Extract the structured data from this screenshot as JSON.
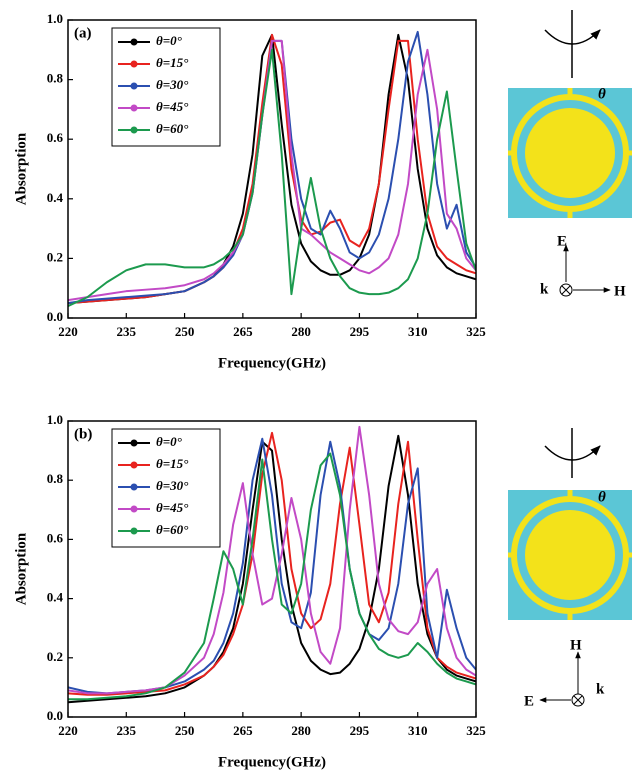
{
  "chart_data": [
    {
      "type": "line",
      "title": "(a)",
      "xlabel": "Frequency(GHz)",
      "ylabel": "Absorption",
      "legend": "upper left",
      "xlim": [
        220,
        325
      ],
      "ylim": [
        0,
        1
      ],
      "xticks": [
        220,
        235,
        250,
        265,
        280,
        295,
        310,
        325
      ],
      "yticks": [
        {
          "value": 0,
          "label": "0.0"
        },
        0.2,
        0.4,
        0.6,
        0.8,
        {
          "value": 1,
          "label": "1.0"
        }
      ],
      "annotations": [
        "θ",
        "E",
        "k",
        "H"
      ],
      "x": [
        220,
        225,
        230,
        235,
        240,
        245,
        250,
        255,
        257.5,
        260,
        262.5,
        265,
        267.5,
        270,
        272.5,
        275,
        277.5,
        280,
        282.5,
        285,
        287.5,
        290,
        292.5,
        295,
        297.5,
        300,
        302.5,
        305,
        307.5,
        310,
        312.5,
        315,
        317.5,
        320,
        322.5,
        325
      ],
      "series": [
        {
          "name": "θ=0°",
          "color": "#000000",
          "values": [
            0.05,
            0.055,
            0.06,
            0.065,
            0.07,
            0.08,
            0.09,
            0.12,
            0.14,
            0.18,
            0.24,
            0.35,
            0.55,
            0.88,
            0.95,
            0.65,
            0.38,
            0.25,
            0.19,
            0.16,
            0.145,
            0.145,
            0.16,
            0.2,
            0.28,
            0.45,
            0.75,
            0.95,
            0.8,
            0.5,
            0.3,
            0.21,
            0.17,
            0.15,
            0.14,
            0.13
          ]
        },
        {
          "name": "θ=15°",
          "color": "#e8231f",
          "values": [
            0.05,
            0.055,
            0.06,
            0.065,
            0.07,
            0.08,
            0.09,
            0.12,
            0.14,
            0.17,
            0.22,
            0.3,
            0.45,
            0.72,
            0.95,
            0.85,
            0.5,
            0.33,
            0.28,
            0.29,
            0.32,
            0.33,
            0.26,
            0.24,
            0.3,
            0.45,
            0.7,
            0.93,
            0.93,
            0.6,
            0.35,
            0.24,
            0.2,
            0.18,
            0.16,
            0.15
          ]
        },
        {
          "name": "θ=30°",
          "color": "#2b4fb0",
          "values": [
            0.05,
            0.06,
            0.065,
            0.07,
            0.075,
            0.08,
            0.09,
            0.12,
            0.14,
            0.17,
            0.21,
            0.28,
            0.42,
            0.68,
            0.93,
            0.93,
            0.6,
            0.4,
            0.3,
            0.28,
            0.36,
            0.3,
            0.22,
            0.2,
            0.22,
            0.28,
            0.4,
            0.6,
            0.86,
            0.96,
            0.75,
            0.45,
            0.3,
            0.38,
            0.22,
            0.17
          ]
        },
        {
          "name": "θ=45°",
          "color": "#c24ac6",
          "values": [
            0.06,
            0.07,
            0.08,
            0.09,
            0.095,
            0.1,
            0.11,
            0.13,
            0.15,
            0.18,
            0.22,
            0.28,
            0.42,
            0.68,
            0.93,
            0.93,
            0.55,
            0.3,
            0.28,
            0.25,
            0.22,
            0.2,
            0.18,
            0.16,
            0.15,
            0.17,
            0.2,
            0.28,
            0.45,
            0.75,
            0.9,
            0.7,
            0.35,
            0.3,
            0.2,
            0.16
          ]
        },
        {
          "name": "θ=60°",
          "color": "#1c9a4e",
          "values": [
            0.04,
            0.07,
            0.12,
            0.16,
            0.18,
            0.18,
            0.17,
            0.17,
            0.18,
            0.2,
            0.23,
            0.28,
            0.42,
            0.68,
            0.9,
            0.55,
            0.08,
            0.3,
            0.47,
            0.3,
            0.2,
            0.14,
            0.1,
            0.085,
            0.08,
            0.08,
            0.085,
            0.1,
            0.13,
            0.2,
            0.35,
            0.6,
            0.76,
            0.5,
            0.25,
            0.16
          ]
        }
      ]
    },
    {
      "type": "line",
      "title": "(b)",
      "xlabel": "Frequency(GHz)",
      "ylabel": "Absorption",
      "legend": "upper left",
      "xlim": [
        220,
        325
      ],
      "ylim": [
        0,
        1
      ],
      "xticks": [
        220,
        235,
        250,
        265,
        280,
        295,
        310,
        325
      ],
      "yticks": [
        {
          "value": 0,
          "label": "0.0"
        },
        0.2,
        0.4,
        0.6,
        0.8,
        {
          "value": 1,
          "label": "1.0"
        }
      ],
      "annotations": [
        "θ",
        "H",
        "E",
        "k"
      ],
      "x": [
        220,
        225,
        230,
        235,
        240,
        245,
        250,
        255,
        257.5,
        260,
        262.5,
        265,
        267.5,
        270,
        272.5,
        275,
        277.5,
        280,
        282.5,
        285,
        287.5,
        290,
        292.5,
        295,
        297.5,
        300,
        302.5,
        305,
        307.5,
        310,
        312.5,
        315,
        317.5,
        320,
        322.5,
        325
      ],
      "series": [
        {
          "name": "θ=0°",
          "color": "#000000",
          "values": [
            0.05,
            0.055,
            0.06,
            0.065,
            0.07,
            0.08,
            0.1,
            0.14,
            0.17,
            0.22,
            0.3,
            0.45,
            0.7,
            0.93,
            0.9,
            0.6,
            0.38,
            0.25,
            0.19,
            0.16,
            0.145,
            0.15,
            0.18,
            0.23,
            0.33,
            0.5,
            0.78,
            0.95,
            0.75,
            0.45,
            0.28,
            0.2,
            0.16,
            0.14,
            0.13,
            0.12
          ]
        },
        {
          "name": "θ=15°",
          "color": "#e8231f",
          "values": [
            0.08,
            0.075,
            0.075,
            0.08,
            0.085,
            0.09,
            0.11,
            0.14,
            0.17,
            0.21,
            0.28,
            0.38,
            0.55,
            0.82,
            0.96,
            0.8,
            0.5,
            0.35,
            0.3,
            0.33,
            0.45,
            0.72,
            0.91,
            0.65,
            0.38,
            0.32,
            0.42,
            0.72,
            0.93,
            0.6,
            0.3,
            0.2,
            0.17,
            0.15,
            0.14,
            0.13
          ]
        },
        {
          "name": "θ=30°",
          "color": "#2b4fb0",
          "values": [
            0.1,
            0.085,
            0.08,
            0.085,
            0.09,
            0.1,
            0.12,
            0.16,
            0.19,
            0.25,
            0.35,
            0.52,
            0.8,
            0.94,
            0.75,
            0.45,
            0.32,
            0.3,
            0.42,
            0.75,
            0.93,
            0.78,
            0.5,
            0.35,
            0.28,
            0.26,
            0.3,
            0.45,
            0.72,
            0.84,
            0.35,
            0.2,
            0.43,
            0.3,
            0.2,
            0.16
          ]
        },
        {
          "name": "θ=45°",
          "color": "#c24ac6",
          "values": [
            0.09,
            0.08,
            0.08,
            0.085,
            0.09,
            0.1,
            0.14,
            0.2,
            0.28,
            0.42,
            0.65,
            0.79,
            0.55,
            0.38,
            0.4,
            0.55,
            0.74,
            0.6,
            0.35,
            0.22,
            0.18,
            0.3,
            0.7,
            0.98,
            0.75,
            0.45,
            0.33,
            0.29,
            0.28,
            0.32,
            0.45,
            0.5,
            0.3,
            0.2,
            0.16,
            0.14
          ]
        },
        {
          "name": "θ=60°",
          "color": "#1c9a4e",
          "values": [
            0.06,
            0.06,
            0.065,
            0.07,
            0.08,
            0.1,
            0.15,
            0.25,
            0.4,
            0.56,
            0.5,
            0.38,
            0.6,
            0.87,
            0.6,
            0.38,
            0.35,
            0.45,
            0.7,
            0.85,
            0.89,
            0.75,
            0.5,
            0.35,
            0.28,
            0.23,
            0.21,
            0.2,
            0.21,
            0.25,
            0.22,
            0.18,
            0.15,
            0.13,
            0.12,
            0.11
          ]
        }
      ]
    }
  ]
}
